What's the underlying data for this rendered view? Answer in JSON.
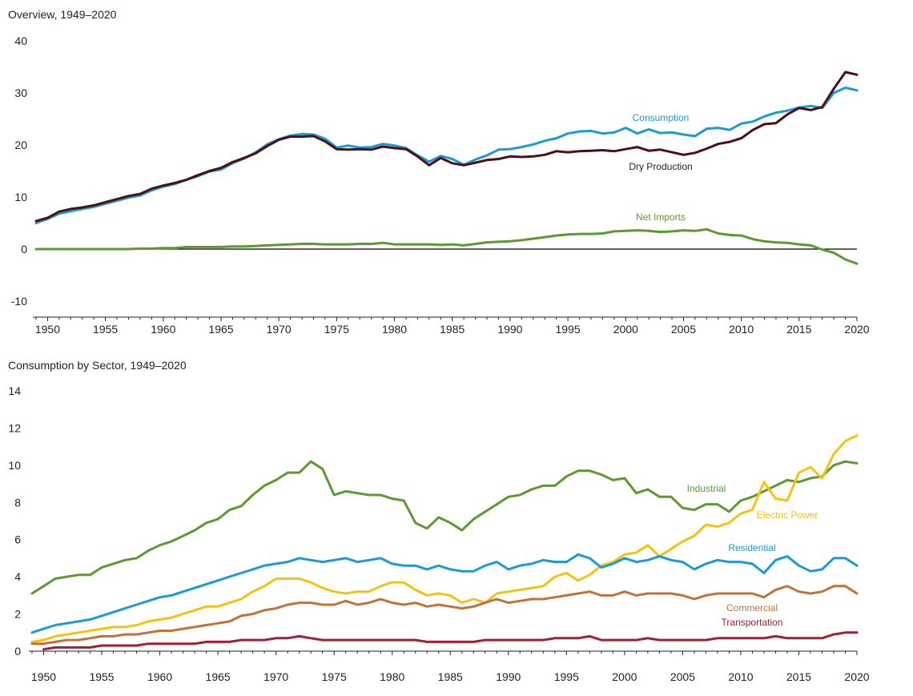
{
  "chart_data": [
    {
      "type": "line",
      "title": "Overview, 1949–2020",
      "xlabel": "",
      "ylabel": "",
      "xlim": [
        1949,
        2020
      ],
      "ylim": [
        -10,
        40
      ],
      "x_ticks": [
        1950,
        1955,
        1960,
        1965,
        1970,
        1975,
        1980,
        1985,
        1990,
        1995,
        2000,
        2005,
        2010,
        2015,
        2020
      ],
      "y_ticks": [
        -10,
        0,
        10,
        20,
        30,
        40
      ],
      "zero_line": true,
      "grid": false,
      "legend": "inline labels",
      "x_start": 1949,
      "series": [
        {
          "name": "Consumption",
          "color": "#1c9ad6",
          "values": [
            5.0,
            5.8,
            6.8,
            7.3,
            7.7,
            8.1,
            8.7,
            9.3,
            9.9,
            10.3,
            11.3,
            12.0,
            12.5,
            13.3,
            14.0,
            14.9,
            15.3,
            16.5,
            17.4,
            18.6,
            20.1,
            21.1,
            21.8,
            22.1,
            22.0,
            21.2,
            19.5,
            19.9,
            19.5,
            19.6,
            20.2,
            19.9,
            19.4,
            18.0,
            16.8,
            17.9,
            17.3,
            16.2,
            17.2,
            18.0,
            19.1,
            19.2,
            19.6,
            20.1,
            20.8,
            21.3,
            22.2,
            22.6,
            22.7,
            22.2,
            22.4,
            23.3,
            22.2,
            23.0,
            22.3,
            22.4,
            22.0,
            21.7,
            23.1,
            23.3,
            22.9,
            24.1,
            24.5,
            25.5,
            26.2,
            26.6,
            27.2,
            27.5,
            27.1,
            30.0,
            31.0,
            30.5
          ]
        },
        {
          "name": "Dry Production",
          "color": "#4b0f14",
          "values": [
            5.4,
            6.0,
            7.2,
            7.7,
            8.0,
            8.4,
            9.0,
            9.6,
            10.2,
            10.6,
            11.6,
            12.2,
            12.7,
            13.3,
            14.2,
            15.0,
            15.6,
            16.7,
            17.5,
            18.4,
            19.8,
            21.0,
            21.6,
            21.6,
            21.7,
            20.7,
            19.2,
            19.1,
            19.2,
            19.1,
            19.7,
            19.4,
            19.2,
            17.8,
            16.1,
            17.5,
            16.5,
            16.1,
            16.6,
            17.1,
            17.3,
            17.8,
            17.7,
            17.8,
            18.1,
            18.8,
            18.6,
            18.8,
            18.9,
            19.0,
            18.8,
            19.2,
            19.6,
            18.9,
            19.1,
            18.6,
            18.1,
            18.5,
            19.3,
            20.2,
            20.6,
            21.3,
            22.9,
            24.0,
            24.2,
            25.9,
            27.1,
            26.7,
            27.3,
            30.8,
            34.0,
            33.5
          ]
        },
        {
          "name": "Net Imports",
          "color": "#5c9a2f",
          "values": [
            0.0,
            0.0,
            0.0,
            0.0,
            0.0,
            0.0,
            0.0,
            0.0,
            0.0,
            0.1,
            0.1,
            0.2,
            0.2,
            0.4,
            0.4,
            0.4,
            0.4,
            0.5,
            0.5,
            0.6,
            0.7,
            0.8,
            0.9,
            1.0,
            1.0,
            0.9,
            0.9,
            0.9,
            1.0,
            1.0,
            1.2,
            0.9,
            0.9,
            0.9,
            0.9,
            0.8,
            0.9,
            0.7,
            1.0,
            1.3,
            1.4,
            1.5,
            1.7,
            2.0,
            2.3,
            2.6,
            2.8,
            2.9,
            2.9,
            3.0,
            3.4,
            3.5,
            3.6,
            3.5,
            3.3,
            3.4,
            3.6,
            3.5,
            3.8,
            3.0,
            2.7,
            2.6,
            1.9,
            1.5,
            1.3,
            1.2,
            0.9,
            0.7,
            -0.1,
            -0.7,
            -2.0,
            -2.8
          ]
        }
      ]
    },
    {
      "type": "line",
      "title": "Consumption by Sector, 1949–2020",
      "xlabel": "",
      "ylabel": "",
      "xlim": [
        1949,
        2020
      ],
      "ylim": [
        0,
        14
      ],
      "x_ticks": [
        1950,
        1955,
        1960,
        1965,
        1970,
        1975,
        1980,
        1985,
        1990,
        1995,
        2000,
        2005,
        2010,
        2015,
        2020
      ],
      "y_ticks": [
        0,
        2,
        4,
        6,
        8,
        10,
        12,
        14
      ],
      "grid": false,
      "legend": "inline labels",
      "x_start": 1949,
      "series": [
        {
          "name": "Industrial",
          "color": "#5c9a2f",
          "values": [
            3.1,
            3.5,
            3.9,
            4.0,
            4.1,
            4.1,
            4.5,
            4.7,
            4.9,
            5.0,
            5.4,
            5.7,
            5.9,
            6.2,
            6.5,
            6.9,
            7.1,
            7.6,
            7.8,
            8.4,
            8.9,
            9.2,
            9.6,
            9.6,
            10.2,
            9.8,
            8.4,
            8.6,
            8.5,
            8.4,
            8.4,
            8.2,
            8.1,
            6.9,
            6.6,
            7.2,
            6.9,
            6.5,
            7.1,
            7.5,
            7.9,
            8.3,
            8.4,
            8.7,
            8.9,
            8.9,
            9.4,
            9.7,
            9.7,
            9.5,
            9.2,
            9.3,
            8.5,
            8.7,
            8.3,
            8.3,
            7.7,
            7.6,
            7.9,
            7.9,
            7.5,
            8.1,
            8.3,
            8.6,
            8.9,
            9.2,
            9.1,
            9.3,
            9.4,
            10.0,
            10.2,
            10.1
          ]
        },
        {
          "name": "Electric Power",
          "color": "#f7c113",
          "values": [
            0.5,
            0.6,
            0.8,
            0.9,
            1.0,
            1.1,
            1.2,
            1.3,
            1.3,
            1.4,
            1.6,
            1.7,
            1.8,
            2.0,
            2.2,
            2.4,
            2.4,
            2.6,
            2.8,
            3.2,
            3.5,
            3.9,
            3.9,
            3.9,
            3.7,
            3.4,
            3.2,
            3.1,
            3.2,
            3.2,
            3.5,
            3.7,
            3.7,
            3.3,
            3.0,
            3.1,
            3.0,
            2.6,
            2.8,
            2.6,
            3.1,
            3.2,
            3.3,
            3.4,
            3.5,
            4.0,
            4.2,
            3.8,
            4.1,
            4.6,
            4.8,
            5.2,
            5.3,
            5.7,
            5.1,
            5.5,
            5.9,
            6.2,
            6.8,
            6.7,
            6.9,
            7.4,
            7.6,
            9.1,
            8.2,
            8.1,
            9.6,
            9.9,
            9.3,
            10.6,
            11.3,
            11.6
          ]
        },
        {
          "name": "Residential",
          "color": "#1c9ad6",
          "values": [
            1.0,
            1.2,
            1.4,
            1.5,
            1.6,
            1.7,
            1.9,
            2.1,
            2.3,
            2.5,
            2.7,
            2.9,
            3.0,
            3.2,
            3.4,
            3.6,
            3.8,
            4.0,
            4.2,
            4.4,
            4.6,
            4.7,
            4.8,
            5.0,
            4.9,
            4.8,
            4.9,
            5.0,
            4.8,
            4.9,
            5.0,
            4.7,
            4.6,
            4.6,
            4.4,
            4.6,
            4.4,
            4.3,
            4.3,
            4.6,
            4.8,
            4.4,
            4.6,
            4.7,
            4.9,
            4.8,
            4.8,
            5.2,
            5.0,
            4.5,
            4.7,
            5.0,
            4.8,
            4.9,
            5.1,
            4.9,
            4.8,
            4.4,
            4.7,
            4.9,
            4.8,
            4.8,
            4.7,
            4.2,
            4.9,
            5.1,
            4.6,
            4.3,
            4.4,
            5.0,
            5.0,
            4.6
          ]
        },
        {
          "name": "Commercial",
          "color": "#c0723a",
          "values": [
            0.4,
            0.4,
            0.5,
            0.6,
            0.6,
            0.7,
            0.8,
            0.8,
            0.9,
            0.9,
            1.0,
            1.1,
            1.1,
            1.2,
            1.3,
            1.4,
            1.5,
            1.6,
            1.9,
            2.0,
            2.2,
            2.3,
            2.5,
            2.6,
            2.6,
            2.5,
            2.5,
            2.7,
            2.5,
            2.6,
            2.8,
            2.6,
            2.5,
            2.6,
            2.4,
            2.5,
            2.4,
            2.3,
            2.4,
            2.6,
            2.8,
            2.6,
            2.7,
            2.8,
            2.8,
            2.9,
            3.0,
            3.1,
            3.2,
            3.0,
            3.0,
            3.2,
            3.0,
            3.1,
            3.1,
            3.1,
            3.0,
            2.8,
            3.0,
            3.1,
            3.1,
            3.1,
            3.1,
            2.9,
            3.3,
            3.5,
            3.2,
            3.1,
            3.2,
            3.5,
            3.5,
            3.1
          ]
        },
        {
          "name": "Transportation",
          "color": "#a11f32",
          "values": [
            null,
            0.1,
            0.2,
            0.2,
            0.2,
            0.2,
            0.3,
            0.3,
            0.3,
            0.3,
            0.4,
            0.4,
            0.4,
            0.4,
            0.4,
            0.5,
            0.5,
            0.5,
            0.6,
            0.6,
            0.6,
            0.7,
            0.7,
            0.8,
            0.7,
            0.6,
            0.6,
            0.6,
            0.6,
            0.6,
            0.6,
            0.6,
            0.6,
            0.6,
            0.5,
            0.5,
            0.5,
            0.5,
            0.5,
            0.6,
            0.6,
            0.6,
            0.6,
            0.6,
            0.6,
            0.7,
            0.7,
            0.7,
            0.8,
            0.6,
            0.6,
            0.6,
            0.6,
            0.7,
            0.6,
            0.6,
            0.6,
            0.6,
            0.6,
            0.7,
            0.7,
            0.7,
            0.7,
            0.7,
            0.8,
            0.7,
            0.7,
            0.7,
            0.7,
            0.9,
            1.0,
            1.0
          ]
        }
      ]
    }
  ]
}
